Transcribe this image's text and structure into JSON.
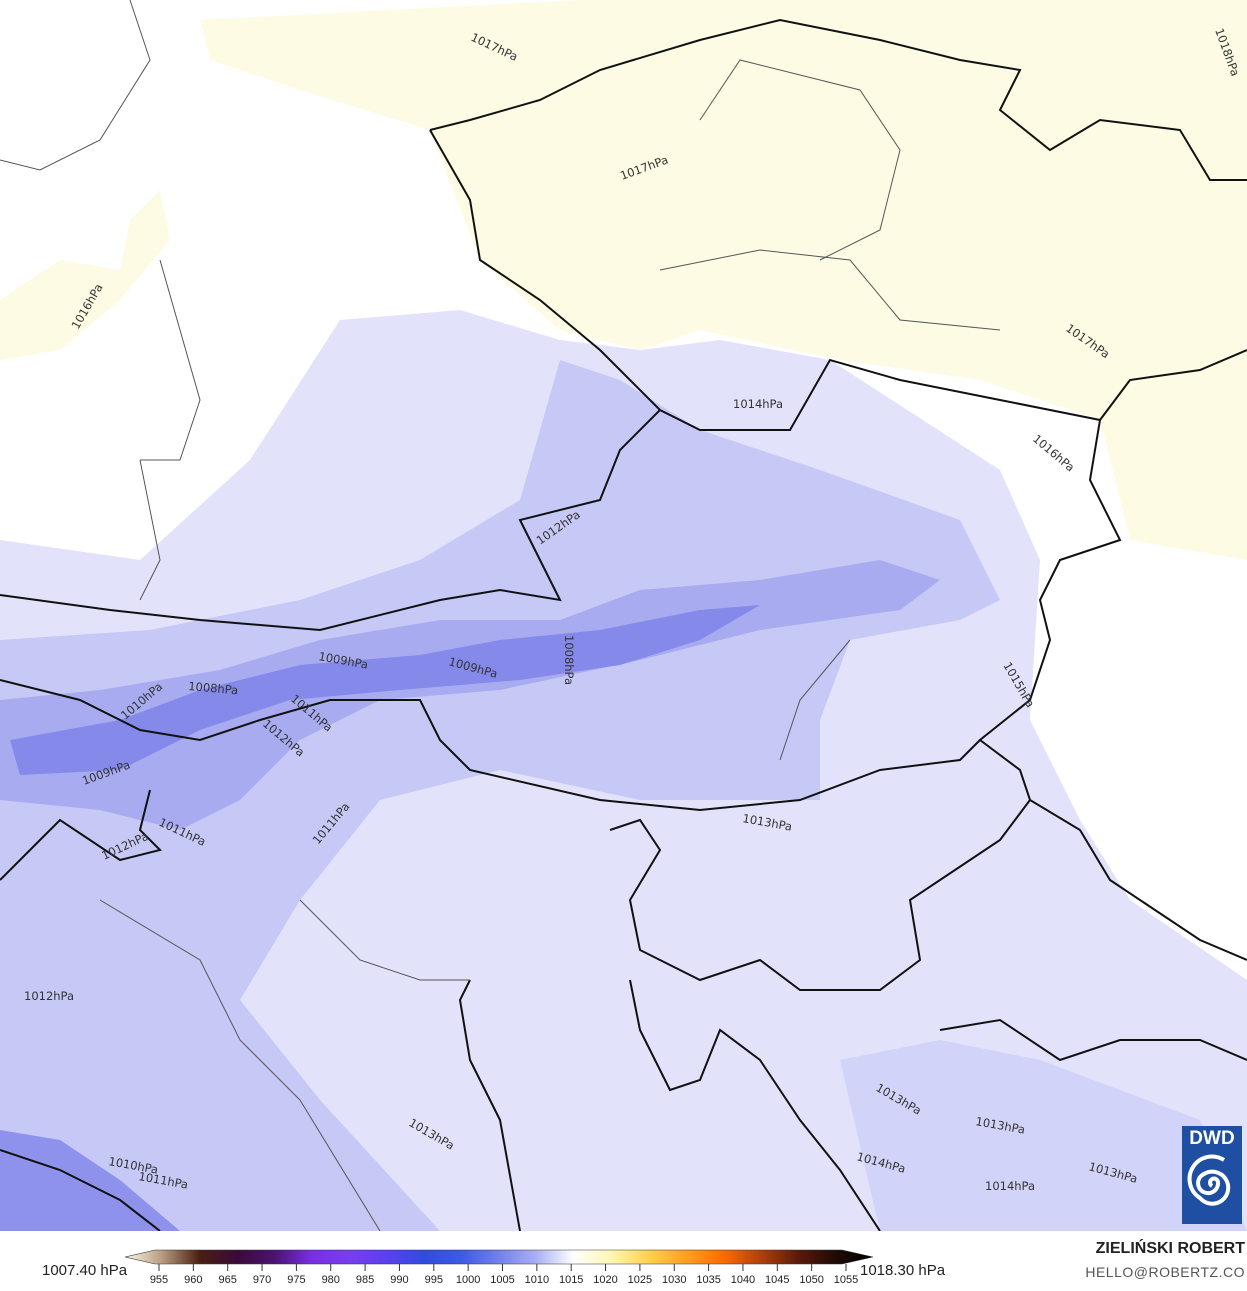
{
  "map": {
    "variable": "mean sea level pressure",
    "colors": {
      "background": "#ffffff",
      "high_yellow": "#fdfbe4",
      "light_blue": "#e2e2fb",
      "mid_blue": "#c6c8f6",
      "blue": "#a8abf0",
      "deep_blue": "#8085ea",
      "border": "#111111",
      "region_border": "#555555"
    },
    "contour_labels": [
      "1017hPa",
      "1018hPa",
      "1017hPa",
      "1016hPa",
      "1017hPa",
      "1014hPa",
      "1016hPa",
      "1012hPa",
      "1008hPa",
      "1009hPa",
      "1009hPa",
      "1008hPa",
      "1010hPa",
      "1011hPa",
      "1012hPa",
      "1009hPa",
      "1015hPa",
      "1011hPa",
      "1012hPa",
      "1011hPa",
      "1013hPa",
      "1012hPa",
      "1013hPa",
      "1013hPa",
      "1013hPa",
      "1014hPa",
      "1014hPa",
      "1013hPa",
      "1010hPa",
      "1011hPa"
    ]
  },
  "legend": {
    "min_label": "1007.40 hPa",
    "max_label": "1018.30 hPa",
    "ticks": [
      "955",
      "960",
      "965",
      "970",
      "975",
      "980",
      "985",
      "990",
      "995",
      "1000",
      "1005",
      "1010",
      "1015",
      "1020",
      "1025",
      "1030",
      "1035",
      "1040",
      "1045",
      "1050",
      "1055"
    ],
    "colors": [
      "#fdf8ea",
      "#b89a80",
      "#4a1e10",
      "#3a0a3a",
      "#4b1370",
      "#7a2ee6",
      "#7a3cf0",
      "#5a40f0",
      "#2f4ce0",
      "#3c5ae8",
      "#7380ec",
      "#aab0f4",
      "#ffffff",
      "#fff7b0",
      "#ffd24a",
      "#ffa020",
      "#ff6a00",
      "#b0400a",
      "#5a1a0a",
      "#200a05",
      "#000000"
    ]
  },
  "credits": {
    "author": "ZIELIŃSKI ROBERT",
    "email": "HELLO@ROBERTZ.CO",
    "logo": "DWD"
  }
}
